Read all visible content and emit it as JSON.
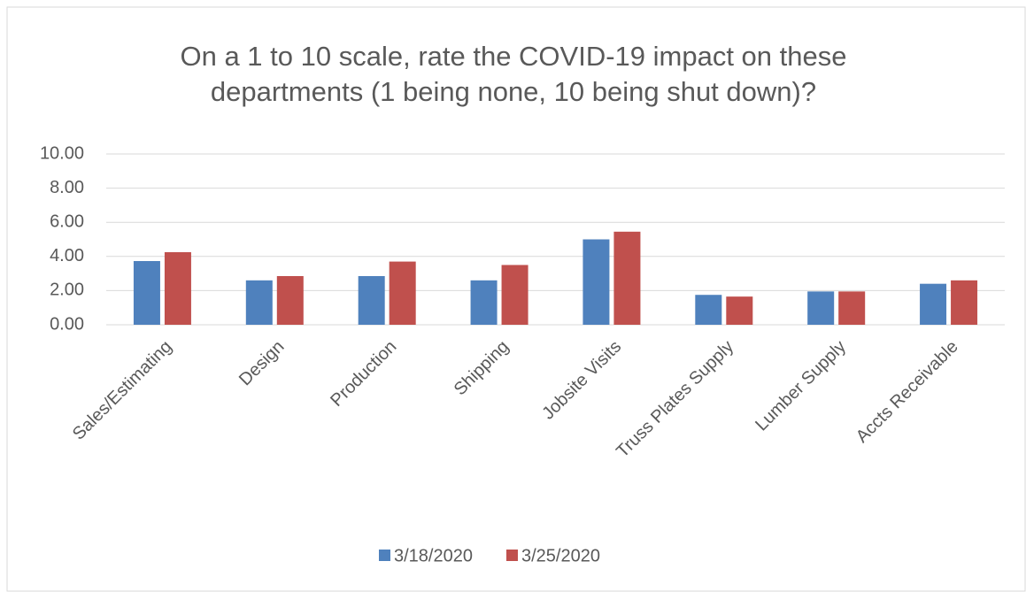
{
  "chart_data": {
    "type": "bar",
    "title": "On a 1 to 10 scale, rate the COVID-19 impact on these departments (1 being none, 10 being shut down)?",
    "categories": [
      "Sales/Estimating",
      "Design",
      "Production",
      "Shipping",
      "Jobsite Visits",
      "Truss Plates Supply",
      "Lumber Supply",
      "Accts Receivable"
    ],
    "series": [
      {
        "name": "3/18/2020",
        "color": "#4f81bd",
        "values": [
          3.73,
          2.6,
          2.85,
          2.6,
          5.0,
          1.75,
          1.95,
          2.4
        ]
      },
      {
        "name": "3/25/2020",
        "color": "#c0504d",
        "values": [
          4.25,
          2.85,
          3.7,
          3.5,
          5.45,
          1.65,
          1.95,
          2.6
        ]
      }
    ],
    "ylim": [
      0,
      10
    ],
    "yticks": [
      {
        "value": 0,
        "label": "0.00"
      },
      {
        "value": 2,
        "label": "2.00"
      },
      {
        "value": 4,
        "label": "4.00"
      },
      {
        "value": 6,
        "label": "6.00"
      },
      {
        "value": 8,
        "label": "8.00"
      },
      {
        "value": 10,
        "label": "10.00"
      }
    ],
    "grid": true,
    "legend": "bottom"
  }
}
